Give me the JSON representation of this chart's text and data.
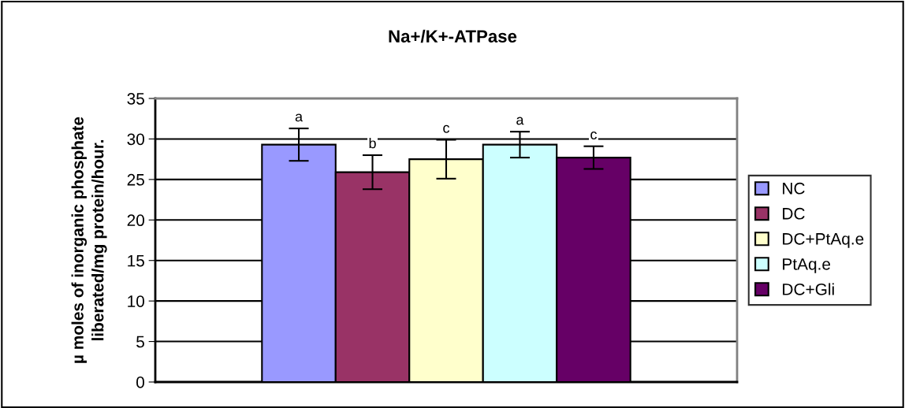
{
  "chart_data": {
    "type": "bar",
    "title": "Na+/K+-ATPase",
    "ylabel": "µ moles of inorganic phosphate liberated/mg protein/hour.",
    "categories": [
      null
    ],
    "series": [
      {
        "name": "NC",
        "color": "#9999ff",
        "values": [
          29.3
        ],
        "errors": [
          2.0
        ],
        "value_labels": [
          "a"
        ]
      },
      {
        "name": "DC",
        "color": "#993366",
        "values": [
          25.9
        ],
        "errors": [
          2.1
        ],
        "value_labels": [
          "b"
        ]
      },
      {
        "name": "DC+PtAq.e",
        "color": "#ffffcc",
        "values": [
          27.5
        ],
        "errors": [
          2.4
        ],
        "value_labels": [
          "c"
        ]
      },
      {
        "name": "PtAq.e",
        "color": "#ccffff",
        "values": [
          29.3
        ],
        "errors": [
          1.6
        ],
        "value_labels": [
          "a"
        ]
      },
      {
        "name": "DC+Gli",
        "color": "#660066",
        "values": [
          27.7
        ],
        "errors": [
          1.4
        ],
        "value_labels": [
          "c"
        ]
      }
    ],
    "ylim": [
      0,
      35
    ],
    "yticks": [
      0,
      5,
      10,
      15,
      20,
      25,
      30,
      35
    ],
    "grid": "y",
    "legend": "right"
  }
}
